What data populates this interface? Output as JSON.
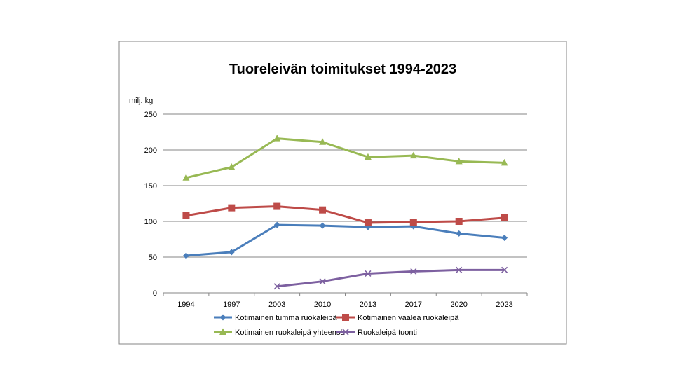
{
  "chart_data": {
    "type": "line",
    "title": "Tuoreleivän toimitukset 1994-2023",
    "ylabel": "milj. kg",
    "xlabel": "",
    "categories": [
      "1994",
      "1997",
      "2003",
      "2010",
      "2013",
      "2017",
      "2020",
      "2023"
    ],
    "ylim": [
      0,
      250
    ],
    "yticks": [
      "250",
      "200",
      "150",
      "100",
      "50",
      "0"
    ],
    "grid": true,
    "legend_position": "bottom",
    "series": [
      {
        "name": "Kotimainen tumma ruokaleipä",
        "color": "#4a7ebb",
        "marker": "diamond",
        "values": [
          52,
          57,
          95,
          94,
          92,
          93,
          83,
          77
        ]
      },
      {
        "name": "Kotimainen vaalea ruokaleipä",
        "color": "#be4b48",
        "marker": "square",
        "values": [
          108,
          119,
          121,
          116,
          98,
          99,
          100,
          105
        ]
      },
      {
        "name": "Kotimainen ruokaleipä yhteensä",
        "color": "#98b954",
        "marker": "triangle",
        "values": [
          161,
          176,
          216,
          211,
          190,
          192,
          184,
          182
        ]
      },
      {
        "name": "Ruokaleipä tuonti",
        "color": "#7d60a0",
        "marker": "x",
        "values": [
          null,
          null,
          9,
          16,
          27,
          30,
          32,
          32
        ]
      }
    ]
  }
}
